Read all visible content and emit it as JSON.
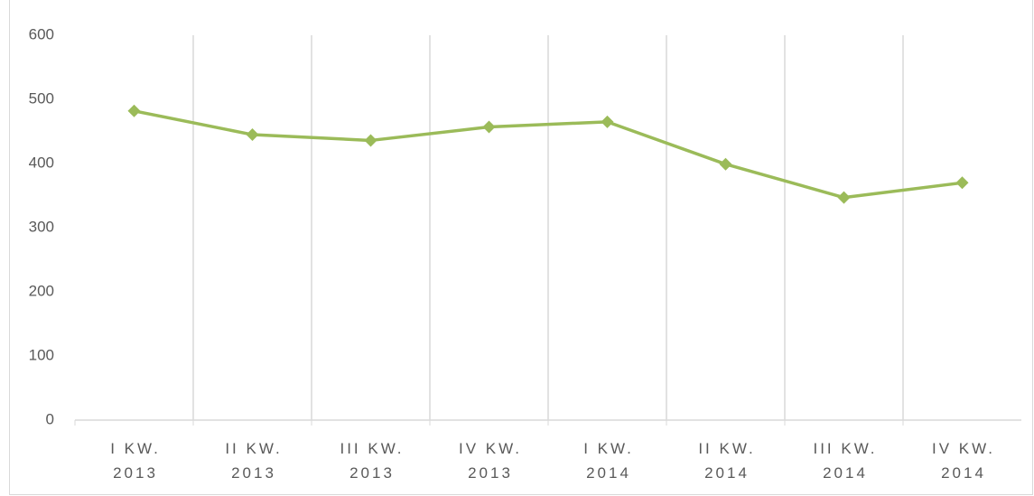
{
  "chart_data": {
    "type": "line",
    "categories": [
      [
        "I KW.",
        "2013"
      ],
      [
        "II KW.",
        "2013"
      ],
      [
        "III KW.",
        "2013"
      ],
      [
        "IV KW.",
        "2013"
      ],
      [
        "I KW.",
        "2014"
      ],
      [
        "II KW.",
        "2014"
      ],
      [
        "III KW.",
        "2014"
      ],
      [
        "IV KW.",
        "2014"
      ]
    ],
    "series": [
      {
        "color": "#9bbb59",
        "values": [
          482,
          445,
          436,
          457,
          465,
          399,
          347,
          370
        ]
      }
    ],
    "ylim": [
      0,
      600
    ],
    "yticks": [
      0,
      100,
      200,
      300,
      400,
      500,
      600
    ],
    "grid": "vertical"
  }
}
